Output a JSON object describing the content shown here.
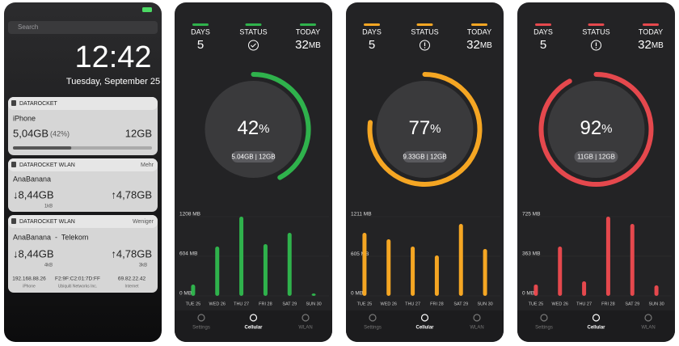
{
  "lock_screen": {
    "search": "Search",
    "time": "12:42",
    "date": "Tuesday, September 25",
    "widgets": [
      {
        "app": "DATAROCKET",
        "device": "iPhone",
        "used": "5,04GB",
        "percent_label": "(42%)",
        "percent": 42,
        "total": "12GB"
      },
      {
        "app": "DATAROCKET WLAN",
        "action": "Mehr",
        "network": "AnaBanana",
        "down": "↓8,44GB",
        "down_rate": "1kB",
        "up": "↑4,78GB"
      },
      {
        "app": "DATAROCKET WLAN",
        "action": "Weniger",
        "network": "AnaBanana  -  Telekom",
        "down": "↓8,44GB",
        "down_rate": "4kB",
        "up": "↑4,78GB",
        "up_rate": "3kB",
        "details": [
          {
            "value": "192.168.88.26",
            "label": "iPhone"
          },
          {
            "value": "F2:9F:C2:01:7D:FF",
            "label": "Ubiquiti Networks Inc."
          },
          {
            "value": "69.82.22.42",
            "label": "Internet"
          }
        ]
      }
    ]
  },
  "app_screens": [
    {
      "color": "#2fb24c",
      "status_icon": "check",
      "days_label": "DAYS",
      "days": "5",
      "status_label": "STATUS",
      "today_label": "TODAY",
      "today": "32",
      "today_unit": "MB",
      "percent": 42,
      "percent_unit": "%",
      "usage": "5.04GB | 12GB",
      "ylim": [
        0,
        1208
      ],
      "yticks": [
        {
          "value": 0,
          "label": "0 MB"
        },
        {
          "value": 604,
          "label": "604 MB"
        },
        {
          "value": 1208,
          "label": "1208 MB"
        }
      ],
      "categories": [
        "TUE 25",
        "WED 26",
        "THU 27",
        "FRI 28",
        "SAT 29",
        "SUN 30"
      ],
      "values": [
        173,
        752,
        1208,
        789,
        961,
        37
      ],
      "tabs": [
        "Settings",
        "Cellular",
        "WLAN"
      ]
    },
    {
      "color": "#f5a623",
      "status_icon": "alert",
      "days_label": "DAYS",
      "days": "5",
      "status_label": "STATUS",
      "today_label": "TODAY",
      "today": "32",
      "today_unit": "MB",
      "percent": 77,
      "percent_unit": "%",
      "usage": "9.33GB | 12GB",
      "ylim": [
        0,
        1211
      ],
      "yticks": [
        {
          "value": 0,
          "label": "0 MB"
        },
        {
          "value": 605,
          "label": "605 MB"
        },
        {
          "value": 1211,
          "label": "1211 MB"
        }
      ],
      "categories": [
        "TUE 25",
        "WED 26",
        "THU 27",
        "FRI 28",
        "SAT 29",
        "SUN 30"
      ],
      "values": [
        964,
        865,
        754,
        618,
        1100,
        717
      ],
      "tabs": [
        "Settings",
        "Cellular",
        "WLAN"
      ]
    },
    {
      "color": "#e5484d",
      "status_icon": "alert",
      "days_label": "DAYS",
      "days": "5",
      "status_label": "STATUS",
      "today_label": "TODAY",
      "today": "32",
      "today_unit": "MB",
      "percent": 92,
      "percent_unit": "%",
      "usage": "11GB | 12GB",
      "ylim": [
        0,
        725
      ],
      "yticks": [
        {
          "value": 0,
          "label": "0 MB"
        },
        {
          "value": 363,
          "label": "363 MB"
        },
        {
          "value": 725,
          "label": "725 MB"
        }
      ],
      "categories": [
        "TUE 25",
        "WED 26",
        "THU 27",
        "FRI 28",
        "SAT 29",
        "SUN 30"
      ],
      "values": [
        104,
        451,
        133,
        725,
        658,
        96
      ],
      "tabs": [
        "Settings",
        "Cellular",
        "WLAN"
      ]
    }
  ]
}
